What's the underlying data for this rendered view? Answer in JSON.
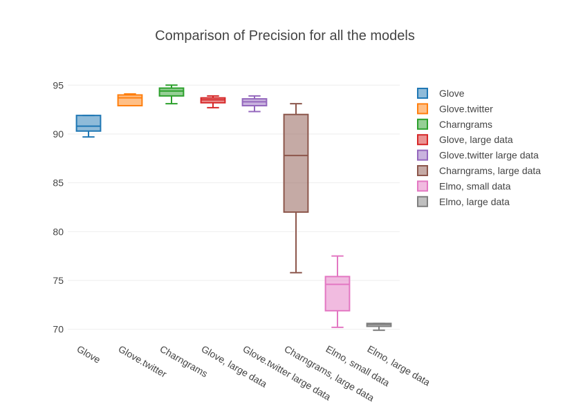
{
  "chart_data": {
    "type": "box",
    "title": "Comparison of Precision for all the models",
    "xlabel": "",
    "ylabel": "",
    "ylim": [
      69.2,
      95.8
    ],
    "yticks": [
      70,
      75,
      80,
      85,
      90,
      95
    ],
    "grid": true,
    "legend_position": "right",
    "categories": [
      "Glove",
      "Glove.twitter",
      "Charngrams",
      "Glove, large data",
      "Glove.twitter large data",
      "Charngrams, large data",
      "Elmo, small data",
      "Elmo, large data"
    ],
    "series": [
      {
        "name": "Glove",
        "color": "#1f77b4",
        "min": 89.7,
        "q1": 90.3,
        "median": 90.8,
        "q3": 91.9,
        "max": 91.9
      },
      {
        "name": "Glove.twitter",
        "color": "#ff7f0e",
        "min": 92.9,
        "q1": 92.9,
        "median": 93.7,
        "q3": 94.0,
        "max": 94.1
      },
      {
        "name": "Charngrams",
        "color": "#2ca02c",
        "min": 93.1,
        "q1": 93.9,
        "median": 94.4,
        "q3": 94.7,
        "max": 95.0
      },
      {
        "name": "Glove, large data",
        "color": "#d62728",
        "min": 92.7,
        "q1": 93.2,
        "median": 93.5,
        "q3": 93.7,
        "max": 93.9
      },
      {
        "name": "Glove.twitter large data",
        "color": "#9467bd",
        "min": 92.3,
        "q1": 92.9,
        "median": 93.3,
        "q3": 93.6,
        "max": 93.9
      },
      {
        "name": "Charngrams, large data",
        "color": "#8c564b",
        "min": 75.8,
        "q1": 82.0,
        "median": 87.8,
        "q3": 92.0,
        "max": 93.1
      },
      {
        "name": "Elmo, small data",
        "color": "#e377c2",
        "min": 70.2,
        "q1": 71.9,
        "median": 74.6,
        "q3": 75.4,
        "max": 77.5
      },
      {
        "name": "Elmo, large data",
        "color": "#7f7f7f",
        "min": 69.9,
        "q1": 70.3,
        "median": 70.5,
        "q3": 70.6,
        "max": 70.6
      }
    ]
  }
}
